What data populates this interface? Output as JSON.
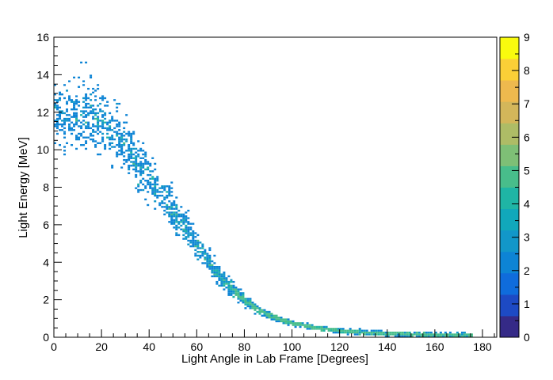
{
  "chart_data": {
    "type": "heatmap",
    "title": "",
    "xlabel": "Light Angle in Lab Frame [Degrees]",
    "ylabel": "Light Energy [MeV]",
    "xlim": [
      0,
      186
    ],
    "ylim": [
      0,
      16
    ],
    "x_ticks": [
      "0",
      "20",
      "40",
      "60",
      "80",
      "100",
      "120",
      "140",
      "160",
      "180"
    ],
    "y_ticks": [
      "0",
      "2",
      "4",
      "6",
      "8",
      "10",
      "12",
      "14",
      "16"
    ],
    "colorbar": {
      "zlim": [
        0,
        9
      ],
      "ticks": [
        "0",
        "1",
        "2",
        "3",
        "4",
        "5",
        "6",
        "7",
        "8",
        "9"
      ],
      "colors": [
        "#352a87",
        "#1d4ac4",
        "#0f6cdc",
        "#0d84d5",
        "#1297c9",
        "#11a8bb",
        "#1fb5a5",
        "#48bd8b",
        "#7ebf76",
        "#aebc66",
        "#d3b65a",
        "#eeb94e",
        "#fbcf37",
        "#f9fb0e"
      ]
    },
    "grid": false,
    "legend": "none",
    "bin_width": {
      "x": 1.0,
      "y": 0.1
    },
    "band": {
      "description_points": [
        {
          "angle": 0,
          "energy": 12.0
        },
        {
          "angle": 5,
          "energy": 11.9
        },
        {
          "angle": 10,
          "energy": 11.8
        },
        {
          "angle": 15,
          "energy": 11.9
        },
        {
          "angle": 20,
          "energy": 11.6
        },
        {
          "angle": 25,
          "energy": 10.9
        },
        {
          "angle": 30,
          "energy": 10.2
        },
        {
          "angle": 35,
          "energy": 9.4
        },
        {
          "angle": 40,
          "energy": 8.5
        },
        {
          "angle": 45,
          "energy": 7.6
        },
        {
          "angle": 50,
          "energy": 6.7
        },
        {
          "angle": 55,
          "energy": 5.9
        },
        {
          "angle": 60,
          "energy": 4.9
        },
        {
          "angle": 65,
          "energy": 4.0
        },
        {
          "angle": 70,
          "energy": 3.2
        },
        {
          "angle": 75,
          "energy": 2.6
        },
        {
          "angle": 80,
          "energy": 2.0
        },
        {
          "angle": 85,
          "energy": 1.5
        },
        {
          "angle": 90,
          "energy": 1.2
        },
        {
          "angle": 95,
          "energy": 0.95
        },
        {
          "angle": 100,
          "energy": 0.75
        },
        {
          "angle": 110,
          "energy": 0.5
        },
        {
          "angle": 120,
          "energy": 0.35
        },
        {
          "angle": 130,
          "energy": 0.25
        },
        {
          "angle": 140,
          "energy": 0.2
        },
        {
          "angle": 150,
          "energy": 0.15
        },
        {
          "angle": 160,
          "energy": 0.12
        },
        {
          "angle": 170,
          "energy": 0.1
        },
        {
          "angle": 176,
          "energy": 0.1
        }
      ],
      "x_range": [
        0,
        176
      ],
      "typical_bin_count": 1,
      "max_bin_count": 3
    }
  }
}
